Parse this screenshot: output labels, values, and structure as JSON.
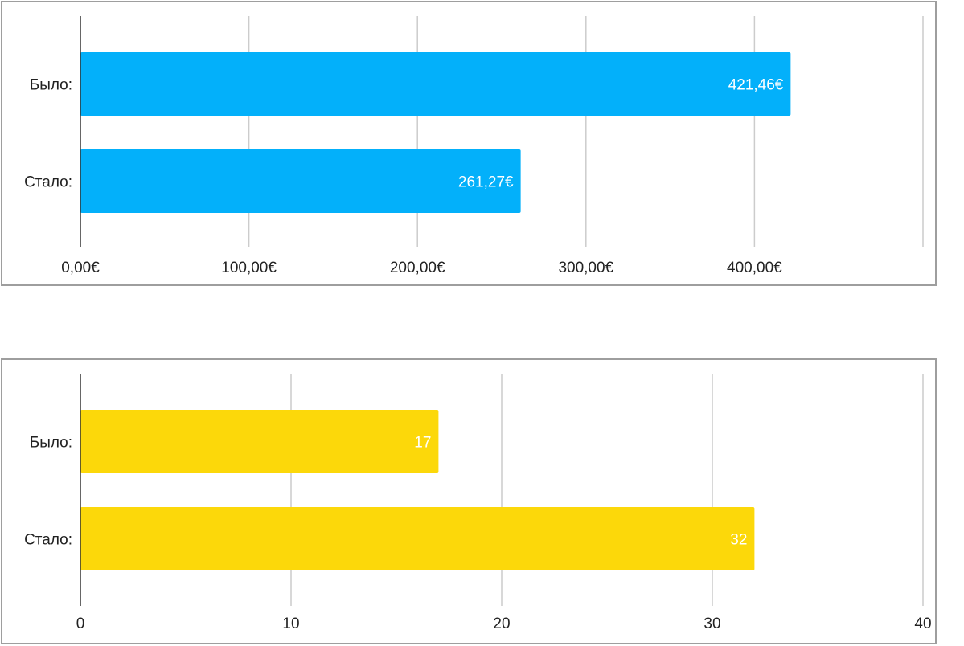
{
  "chart_data": [
    {
      "type": "bar",
      "orientation": "horizontal",
      "categories": [
        "Было:",
        "Стало:"
      ],
      "values": [
        421.46,
        261.27
      ],
      "data_labels": [
        "421,46€",
        "261,27€"
      ],
      "xlim": [
        0,
        500
      ],
      "x_ticks": [
        0,
        100,
        200,
        300,
        400
      ],
      "x_tick_labels": [
        "0,00€",
        "100,00€",
        "200,00€",
        "300,00€",
        "400,00€"
      ],
      "grid": true,
      "legend": "none",
      "color": "#03b0fa"
    },
    {
      "type": "bar",
      "orientation": "horizontal",
      "categories": [
        "Было:",
        "Стало:"
      ],
      "values": [
        17,
        32
      ],
      "data_labels": [
        "17",
        "32"
      ],
      "xlim": [
        0,
        40
      ],
      "x_ticks": [
        0,
        10,
        20,
        30,
        40
      ],
      "x_tick_labels": [
        "0",
        "10",
        "20",
        "30",
        "40"
      ],
      "grid": true,
      "legend": "none",
      "color": "#fcd80a"
    }
  ]
}
